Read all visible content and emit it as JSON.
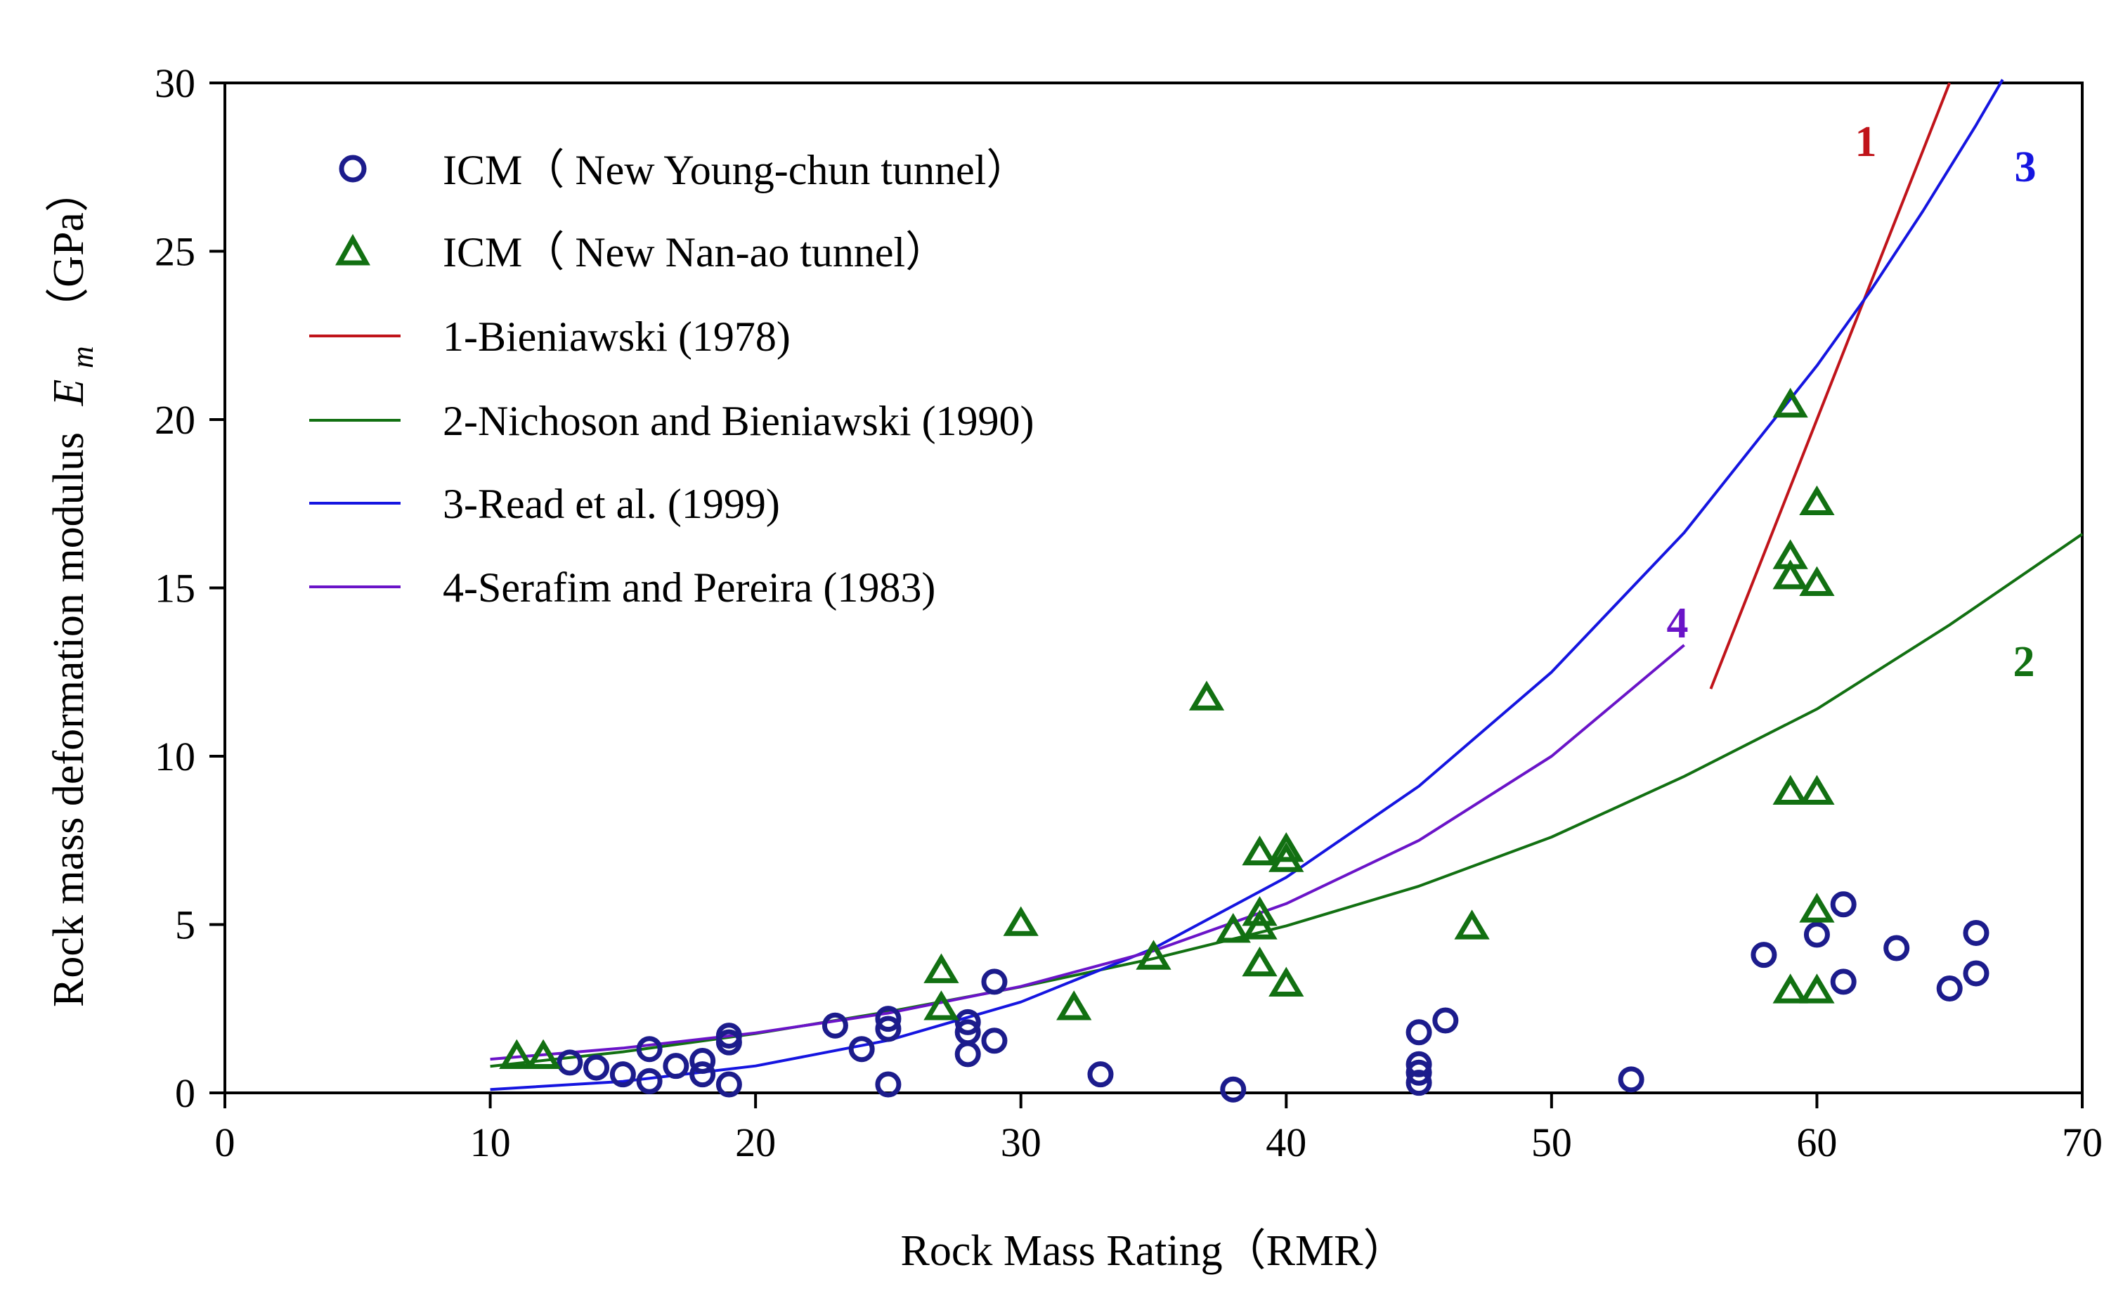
{
  "chart_data": {
    "type": "scatter",
    "title": "",
    "xlabel": "Rock Mass Rating（RMR）",
    "ylabel_prefix": "Rock mass deformation modulus",
    "ylabel_symbol": "E",
    "ylabel_subscript": "m",
    "ylabel_suffix": "（GPa）",
    "xlim": [
      0,
      70
    ],
    "ylim": [
      0,
      30
    ],
    "xticks": [
      "0",
      "10",
      "20",
      "30",
      "40",
      "50",
      "60",
      "70"
    ],
    "yticks": [
      "0",
      "5",
      "10",
      "15",
      "20",
      "25",
      "30"
    ],
    "xtick_values": [
      0,
      10,
      20,
      30,
      40,
      50,
      60,
      70
    ],
    "ytick_values": [
      0,
      5,
      10,
      15,
      20,
      25,
      30
    ],
    "grid": false,
    "legend_position": "top-left",
    "legend": [
      "ICM（ New Young-chun tunnel）",
      "ICM（ New Nan-ao tunnel）",
      "1-Bieniawski (1978)",
      "2-Nichoson and Bieniawski (1990)",
      "3-Read et al. (1999)",
      "4-Serafim and Pereira (1983)"
    ],
    "scatter_series": [
      {
        "name": "ICM（ New Young-chun tunnel）",
        "marker": "circle",
        "color": "#1c1c8c",
        "points": [
          [
            13,
            0.9
          ],
          [
            14,
            0.75
          ],
          [
            15,
            0.55
          ],
          [
            16,
            1.3
          ],
          [
            16,
            0.35
          ],
          [
            17,
            0.8
          ],
          [
            18,
            0.95
          ],
          [
            18,
            0.55
          ],
          [
            19,
            1.7
          ],
          [
            19,
            1.5
          ],
          [
            19,
            0.25
          ],
          [
            23,
            2.0
          ],
          [
            24,
            1.3
          ],
          [
            25,
            2.2
          ],
          [
            25,
            1.9
          ],
          [
            25,
            0.25
          ],
          [
            28,
            2.1
          ],
          [
            28,
            1.8
          ],
          [
            28,
            1.15
          ],
          [
            29,
            3.3
          ],
          [
            29,
            1.55
          ],
          [
            33,
            0.55
          ],
          [
            38,
            0.1
          ],
          [
            45,
            1.8
          ],
          [
            45,
            0.85
          ],
          [
            45,
            0.6
          ],
          [
            45,
            0.3
          ],
          [
            46,
            2.15
          ],
          [
            53,
            0.4
          ],
          [
            58,
            4.1
          ],
          [
            60,
            4.7
          ],
          [
            61,
            5.6
          ],
          [
            61,
            3.3
          ],
          [
            63,
            4.3
          ],
          [
            65,
            3.1
          ],
          [
            66,
            4.75
          ],
          [
            66,
            3.55
          ]
        ]
      },
      {
        "name": "ICM（ New Nan-ao tunnel）",
        "marker": "triangle",
        "color": "#127012",
        "points": [
          [
            11,
            1.05
          ],
          [
            12,
            1.05
          ],
          [
            27,
            3.6
          ],
          [
            27,
            2.5
          ],
          [
            30,
            5.0
          ],
          [
            32,
            2.5
          ],
          [
            35,
            4.0
          ],
          [
            37,
            11.7
          ],
          [
            38,
            4.8
          ],
          [
            39,
            7.1
          ],
          [
            39,
            5.3
          ],
          [
            39,
            4.9
          ],
          [
            39,
            3.8
          ],
          [
            40,
            7.2
          ],
          [
            40,
            6.9
          ],
          [
            40,
            3.2
          ],
          [
            47,
            4.9
          ],
          [
            59,
            20.4
          ],
          [
            59,
            15.9
          ],
          [
            59,
            15.3
          ],
          [
            59,
            8.9
          ],
          [
            59,
            3.0
          ],
          [
            60,
            17.5
          ],
          [
            60,
            15.1
          ],
          [
            60,
            8.9
          ],
          [
            60,
            5.4
          ],
          [
            60,
            3.0
          ]
        ]
      }
    ],
    "line_series": [
      {
        "name": "1-Bieniawski (1978)",
        "label": "1",
        "color": "#c0141a",
        "x": [
          56,
          58,
          60,
          62,
          64,
          65
        ],
        "y": [
          12,
          16,
          20,
          24,
          28,
          30
        ]
      },
      {
        "name": "2-Nichoson and Bieniawski (1990)",
        "label": "2",
        "color": "#127012",
        "x": [
          10,
          15,
          20,
          25,
          30,
          35,
          40,
          45,
          50,
          55,
          60,
          65,
          70
        ],
        "y": [
          0.79,
          1.22,
          1.76,
          2.41,
          3.15,
          3.99,
          4.96,
          6.14,
          7.6,
          9.4,
          11.4,
          13.9,
          16.6
        ]
      },
      {
        "name": "3-Read et al. (1999)",
        "label": "3",
        "color": "#1515e0",
        "x": [
          10,
          15,
          20,
          25,
          30,
          35,
          40,
          45,
          50,
          55,
          60,
          62,
          64,
          66,
          67
        ],
        "y": [
          0.1,
          0.34,
          0.8,
          1.56,
          2.7,
          4.29,
          6.4,
          9.11,
          12.5,
          16.64,
          21.6,
          23.8,
          26.2,
          28.75,
          30.1
        ]
      },
      {
        "name": "4-Serafim and Pereira (1983)",
        "label": "4",
        "color": "#6a14c8",
        "x": [
          10,
          15,
          20,
          25,
          30,
          35,
          40,
          45,
          50,
          55
        ],
        "y": [
          1.0,
          1.33,
          1.78,
          2.37,
          3.16,
          4.22,
          5.62,
          7.5,
          10.0,
          13.3
        ]
      }
    ]
  }
}
